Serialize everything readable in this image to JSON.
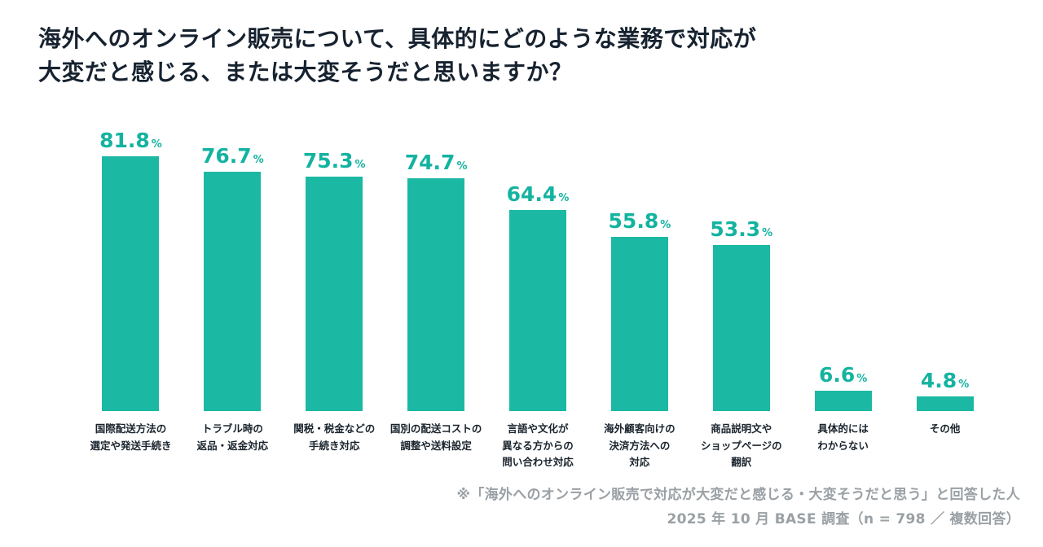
{
  "chart_data": {
    "type": "bar",
    "title": "海外へのオンライン販売について、具体的にどのような業務で対応が大変だと感じる、または大変そうだと思いますか？",
    "title_lines": [
      "海外へのオンライン販売について、具体的にどのような業務で対応が",
      "大変だと感じる、または大変そうだと思いますか？"
    ],
    "categories": [
      "国際配送方法の\n選定や発送手続き",
      "トラブル時の\n返品・返金対応",
      "関税・税金などの\n手続き対応",
      "国別の配送コストの\n調整や送料設定",
      "言語や文化が\n異なる方からの\n問い合わせ対応",
      "海外顧客向けの\n決済方法への\n対応",
      "商品説明文や\nショップページの\n翻訳",
      "具体的には\nわからない",
      "その他"
    ],
    "values": [
      81.8,
      76.7,
      75.3,
      74.7,
      64.4,
      55.8,
      53.3,
      6.6,
      4.8
    ],
    "unit": "%",
    "ylim": [
      0,
      100
    ],
    "grid": false,
    "legend": false,
    "bar_color": "#1bb8a3",
    "value_label_color": "#14b3a0",
    "source_note_lines": [
      "※「海外へのオンライン販売で対応が大変だと感じる・大変そうだと思う」と回答した人",
      "2025 年 10 月 BASE 調査（n = 798 ／ 複数回答）"
    ]
  }
}
